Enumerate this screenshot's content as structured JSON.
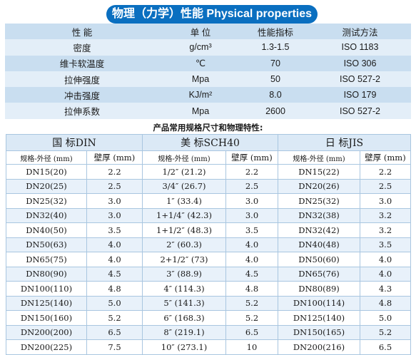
{
  "title": "物理（力学）性能 Physical properties",
  "properties": {
    "headers": [
      "性 能",
      "单 位",
      "性能指标",
      "测试方法"
    ],
    "rows": [
      [
        "密度",
        "g/cm³",
        "1.3-1.5",
        "ISO 1183"
      ],
      [
        "维卡软温度",
        "℃",
        "70",
        "ISO 306"
      ],
      [
        "拉伸强度",
        "Mpa",
        "50",
        "ISO 527-2"
      ],
      [
        "冲击强度",
        "KJ/m²",
        "8.0",
        "ISO 179"
      ],
      [
        "拉伸系数",
        "Mpa",
        "2600",
        "ISO 527-2"
      ]
    ]
  },
  "subtitle": "产品常用规格尺寸和物理特性:",
  "sizes": {
    "groups": [
      "国 标DIN",
      "美 标SCH40",
      "日 标JIS"
    ],
    "sub_headers": [
      "规格-外径 (mm)",
      "壁厚 (mm)",
      "规格-外径 (mm)",
      "壁厚 (mm)",
      "规格-外径 (mm)",
      "壁厚 (mm)"
    ],
    "rows": [
      [
        "DN15(20)",
        "2.2",
        "1/2″ (21.2)",
        "2.2",
        "DN15(22)",
        "2.2"
      ],
      [
        "DN20(25)",
        "2.5",
        "3/4″ (26.7)",
        "2.5",
        "DN20(26)",
        "2.5"
      ],
      [
        "DN25(32)",
        "3.0",
        "1″ (33.4)",
        "3.0",
        "DN25(32)",
        "3.0"
      ],
      [
        "DN32(40)",
        "3.0",
        "1+1/4″ (42.3)",
        "3.0",
        "DN32(38)",
        "3.2"
      ],
      [
        "DN40(50)",
        "3.5",
        "1+1/2″ (48.3)",
        "3.5",
        "DN32(42)",
        "3.2"
      ],
      [
        "DN50(63)",
        "4.0",
        "2″ (60.3)",
        "4.0",
        "DN40(48)",
        "3.5"
      ],
      [
        "DN65(75)",
        "4.0",
        "2+1/2″ (73)",
        "4.0",
        "DN50(60)",
        "4.0"
      ],
      [
        "DN80(90)",
        "4.5",
        "3″ (88.9)",
        "4.5",
        "DN65(76)",
        "4.0"
      ],
      [
        "DN100(110)",
        "4.8",
        "4″ (114.3)",
        "4.8",
        "DN80(89)",
        "4.3"
      ],
      [
        "DN125(140)",
        "5.0",
        "5″ (141.3)",
        "5.2",
        "DN100(114)",
        "4.8"
      ],
      [
        "DN150(160)",
        "5.2",
        "6″ (168.3)",
        "5.2",
        "DN125(140)",
        "5.0"
      ],
      [
        "DN200(200)",
        "6.5",
        "8″ (219.1)",
        "6.5",
        "DN150(165)",
        "5.2"
      ],
      [
        "DN200(225)",
        "7.5",
        "10″ (273.1)",
        "10",
        "DN200(216)",
        "6.5"
      ]
    ]
  }
}
